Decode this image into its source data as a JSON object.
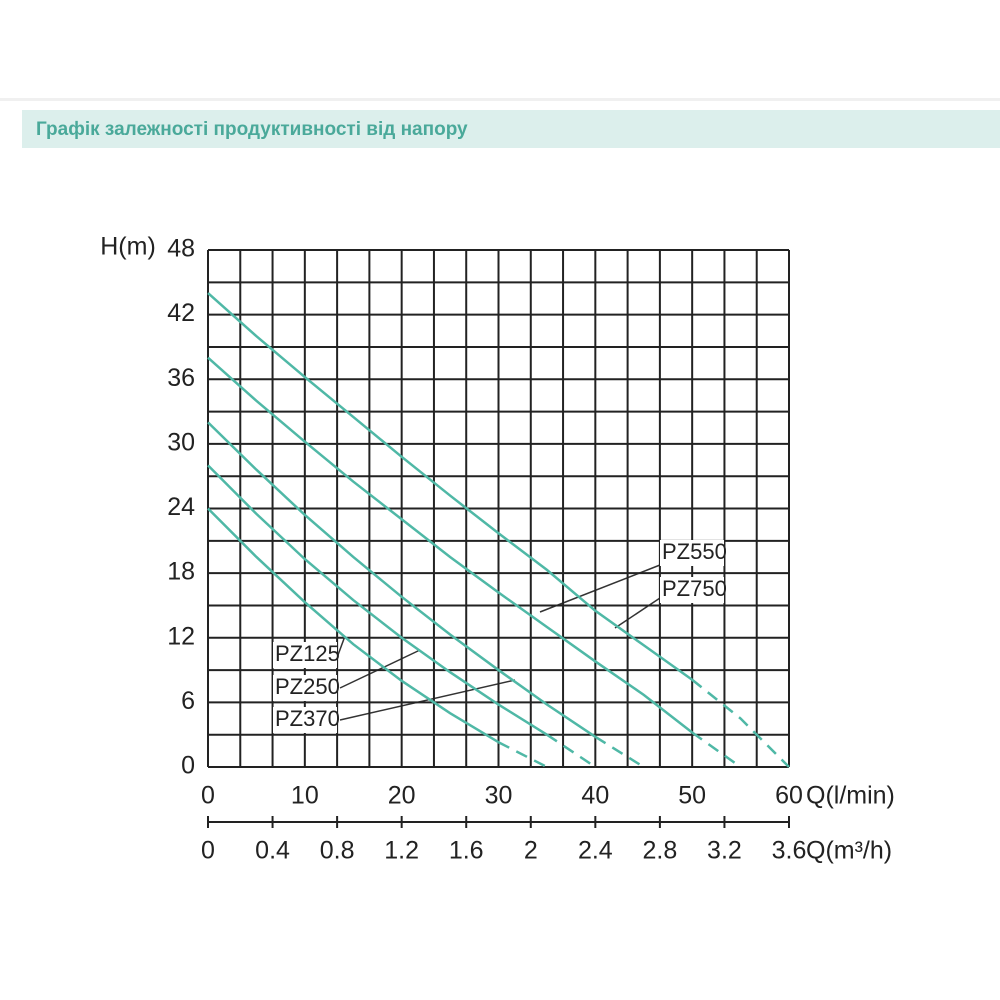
{
  "chart_data": {
    "type": "line",
    "title": "Графік залежності продуктивності від напору",
    "ylabel": "H(m)",
    "xlabel": "Q(l/min)",
    "x2label": "Q(m³/h)",
    "x": [
      0,
      5,
      10,
      15,
      20,
      25,
      30,
      35,
      40,
      45,
      50,
      55,
      60
    ],
    "xlim": [
      0,
      60
    ],
    "xticks": [
      0,
      10,
      20,
      30,
      40,
      50,
      60
    ],
    "x2lim": [
      0,
      3.6
    ],
    "x2ticks": [
      0,
      0.4,
      0.8,
      1.2,
      1.6,
      2,
      2.4,
      2.8,
      3.2,
      3.6
    ],
    "x2grid": [
      0,
      0.2,
      0.4,
      0.6,
      0.8,
      1,
      1.2,
      1.4,
      1.6,
      1.8,
      2,
      2.2,
      2.4,
      2.6,
      2.8,
      3,
      3.2,
      3.4,
      3.6
    ],
    "ylim": [
      0,
      48
    ],
    "yticks": [
      0,
      6,
      12,
      18,
      24,
      30,
      36,
      42,
      48
    ],
    "ygrid": [
      0,
      3,
      6,
      9,
      12,
      15,
      18,
      21,
      24,
      27,
      30,
      33,
      36,
      39,
      42,
      45,
      48
    ],
    "grid": true,
    "series": [
      {
        "name": "PZ125",
        "color": "#4fb8a6",
        "dashed_from": 6,
        "values": [
          24,
          19.5,
          15.3,
          11.4,
          8,
          5,
          2.3,
          0,
          null,
          null,
          null,
          null,
          null
        ]
      },
      {
        "name": "PZ250",
        "color": "#4fb8a6",
        "dashed_from": 7,
        "values": [
          28,
          23.5,
          19.3,
          15.5,
          12,
          8.8,
          5.8,
          3,
          0,
          null,
          null,
          null,
          null
        ]
      },
      {
        "name": "PZ370",
        "color": "#4fb8a6",
        "dashed_from": 8,
        "values": [
          32,
          27.6,
          23.4,
          19.5,
          15.8,
          12.3,
          9,
          5.8,
          2.8,
          0,
          null,
          null,
          null
        ]
      },
      {
        "name": "PZ550",
        "color": "#4fb8a6",
        "dashed_from": 10,
        "values": [
          38,
          34,
          30.2,
          26.5,
          23,
          19.5,
          16.2,
          13,
          9.8,
          6.7,
          3.2,
          0,
          null
        ]
      },
      {
        "name": "PZ750",
        "color": "#4fb8a6",
        "dashed_from": 10,
        "values": [
          44,
          40,
          36.2,
          32.5,
          28.8,
          25.2,
          21.7,
          18.3,
          14.5,
          11.3,
          8.1,
          4.5,
          0
        ]
      }
    ]
  }
}
